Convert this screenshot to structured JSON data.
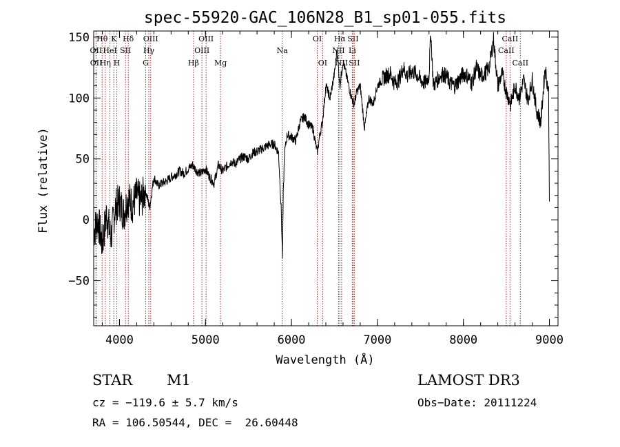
{
  "chart_data": {
    "type": "line",
    "title": "spec-55920-GAC_106N28_B1_sp01-055.fits",
    "xlabel": "Wavelength (Å)",
    "ylabel": "Flux (relative)",
    "xlim": [
      3700,
      9100
    ],
    "ylim": [
      -87,
      155
    ],
    "xticks": [
      4000,
      5000,
      6000,
      7000,
      8000,
      9000
    ],
    "yticks": [
      -50,
      0,
      50,
      100,
      150
    ],
    "xtick_labels": [
      "4000",
      "5000",
      "6000",
      "7000",
      "8000",
      "9000"
    ],
    "ytick_labels": [
      "−50",
      "0",
      "50",
      "100",
      "150"
    ],
    "series": [
      {
        "name": "flux",
        "x": [
          3700,
          3750,
          3800,
          3850,
          3900,
          3950,
          4000,
          4050,
          4100,
          4150,
          4200,
          4250,
          4300,
          4350,
          4400,
          4450,
          4500,
          4550,
          4600,
          4650,
          4700,
          4750,
          4800,
          4850,
          4900,
          4950,
          5000,
          5050,
          5100,
          5150,
          5200,
          5250,
          5300,
          5350,
          5400,
          5450,
          5500,
          5550,
          5600,
          5650,
          5700,
          5750,
          5800,
          5850,
          5880,
          5895,
          5905,
          5920,
          5950,
          6000,
          6050,
          6100,
          6150,
          6200,
          6250,
          6300,
          6330,
          6360,
          6400,
          6450,
          6500,
          6530,
          6563,
          6600,
          6650,
          6700,
          6730,
          6760,
          6800,
          6850,
          6900,
          6950,
          7000,
          7050,
          7100,
          7150,
          7200,
          7250,
          7300,
          7350,
          7400,
          7450,
          7500,
          7550,
          7600,
          7620,
          7650,
          7700,
          7750,
          7800,
          7850,
          7900,
          7950,
          8000,
          8050,
          8100,
          8150,
          8200,
          8250,
          8300,
          8350,
          8400,
          8450,
          8500,
          8550,
          8600,
          8650,
          8700,
          8750,
          8800,
          8850,
          8900,
          8950,
          8990,
          9000
        ],
        "values": [
          -10,
          0,
          -20,
          5,
          -15,
          10,
          15,
          5,
          18,
          12,
          20,
          15,
          25,
          10,
          35,
          28,
          30,
          32,
          35,
          37,
          40,
          38,
          42,
          45,
          40,
          38,
          42,
          35,
          30,
          45,
          40,
          44,
          48,
          46,
          50,
          52,
          50,
          55,
          56,
          58,
          60,
          62,
          62,
          55,
          10,
          -30,
          20,
          55,
          70,
          68,
          65,
          80,
          85,
          78,
          75,
          55,
          70,
          80,
          110,
          100,
          120,
          140,
          110,
          130,
          115,
          100,
          95,
          105,
          110,
          75,
          100,
          95,
          110,
          115,
          118,
          120,
          112,
          115,
          125,
          118,
          122,
          120,
          115,
          112,
          118,
          155,
          110,
          115,
          120,
          118,
          112,
          110,
          115,
          120,
          118,
          112,
          125,
          118,
          120,
          125,
          148,
          110,
          120,
          105,
          95,
          110,
          100,
          115,
          98,
          115,
          90,
          80,
          125,
          105,
          15
        ]
      }
    ],
    "spectral_lines": [
      {
        "name": "Hθ",
        "x": 3798,
        "row": 1
      },
      {
        "name": "OII",
        "x": 3727,
        "row": 2
      },
      {
        "name": "OII",
        "x": 3729,
        "row": 3
      },
      {
        "name": "Hη",
        "x": 3835,
        "row": 3
      },
      {
        "name": "K",
        "x": 3934,
        "row": 1
      },
      {
        "name": "HeI",
        "x": 3889,
        "row": 2
      },
      {
        "name": "H",
        "x": 3969,
        "row": 3
      },
      {
        "name": "SII",
        "x": 4070,
        "row": 2
      },
      {
        "name": "Hδ",
        "x": 4102,
        "row": 1
      },
      {
        "name": "OIII",
        "x": 4363,
        "row": 1
      },
      {
        "name": "Hγ",
        "x": 4341,
        "row": 2
      },
      {
        "name": "G",
        "x": 4305,
        "row": 3
      },
      {
        "name": "Hβ",
        "x": 4861,
        "row": 3
      },
      {
        "name": "OIII",
        "x": 5007,
        "row": 1
      },
      {
        "name": "OIII",
        "x": 4959,
        "row": 2
      },
      {
        "name": "Mg",
        "x": 5175,
        "row": 3
      },
      {
        "name": "Na",
        "x": 5893,
        "row": 2
      },
      {
        "name": "OI",
        "x": 6300,
        "row": 1
      },
      {
        "name": "OI",
        "x": 6363,
        "row": 3
      },
      {
        "name": "Hα",
        "x": 6563,
        "row": 1
      },
      {
        "name": "SII",
        "x": 6716,
        "row": 1
      },
      {
        "name": "NII",
        "x": 6548,
        "row": 2
      },
      {
        "name": "Li",
        "x": 6708,
        "row": 2
      },
      {
        "name": "NII",
        "x": 6583,
        "row": 3
      },
      {
        "name": "SII",
        "x": 6731,
        "row": 3
      },
      {
        "name": "CaII",
        "x": 8542,
        "row": 1
      },
      {
        "name": "CaII",
        "x": 8498,
        "row": 2
      },
      {
        "name": "CaII",
        "x": 8662,
        "row": 3
      }
    ]
  },
  "info": {
    "object_class": "STAR",
    "subclass": "M1",
    "survey": "LAMOST DR3",
    "cz": "cz = −119.6 ± 5.7 km/s",
    "obs_date": "Obs−Date: 20111224",
    "coords": "RA = 106.50544, DEC =  26.60448"
  }
}
